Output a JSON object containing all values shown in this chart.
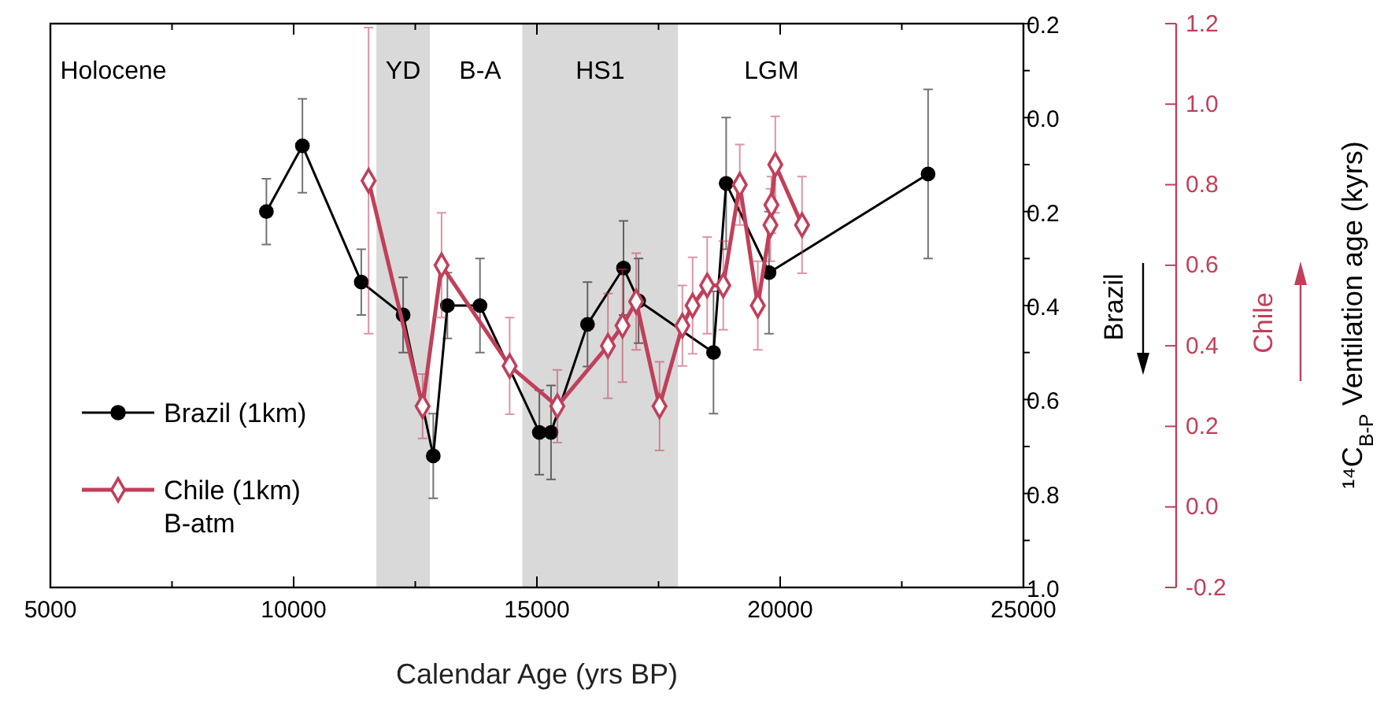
{
  "chart_data": {
    "type": "line",
    "xlabel": "Calendar Age (yrs BP)",
    "ylabel": "Brazil",
    "y2label": "Chile",
    "xlim": [
      5000,
      25000
    ],
    "xticks": [
      5000,
      {
        "value": 7500,
        "label": null
      },
      10000,
      {
        "value": 12500,
        "label": null
      },
      15000,
      {
        "value": 17500,
        "label": null
      },
      20000,
      {
        "value": 22500,
        "label": null
      },
      25000
    ],
    "ylim": [
      1.0,
      -0.2
    ],
    "yticks": [
      {
        "value": -0.2,
        "label": "0.2"
      },
      {
        "value": -0.1,
        "label": null
      },
      {
        "value": 0,
        "label": "0.0"
      },
      {
        "value": 0.1,
        "label": null
      },
      0.2,
      {
        "value": 0.3,
        "label": null
      },
      0.4,
      {
        "value": 0.5,
        "label": null
      },
      0.6,
      {
        "value": 0.7,
        "label": null
      },
      0.8,
      {
        "value": 0.9,
        "label": null
      },
      {
        "value": 1,
        "label": "1.0"
      }
    ],
    "y2lim": [
      -0.2,
      1.2
    ],
    "y2ticks": [
      -0.2,
      {
        "value": 0,
        "label": "0.0"
      },
      0.2,
      0.4,
      0.6,
      0.8,
      {
        "value": 1,
        "label": "1.0"
      },
      1.2
    ],
    "bands": [
      {
        "axis": "x",
        "from": 11700,
        "to": 12800,
        "label": "YD",
        "color": "#d9d9d9"
      },
      {
        "axis": "x",
        "from": 14700,
        "to": 17900,
        "label": "HS1",
        "color": "#d9d9d9"
      }
    ],
    "annotations": [
      "Holocene",
      "B-A",
      "LGM",
      "B-atm",
      "¹⁴C$_{B-P}$ Ventilation age (kyrs)"
    ],
    "legend": "bottom left",
    "grid": false,
    "series": [
      {
        "name": "Brazil (1km)",
        "color": "#000000",
        "marker": "circle",
        "x": [
          9440,
          10180,
          11390,
          12250,
          12870,
          13160,
          13830,
          15050,
          15290,
          16040,
          16780,
          17090,
          18630,
          18890,
          19770,
          23040
        ],
        "values": [
          0.2,
          0.06,
          0.35,
          0.42,
          0.72,
          0.4,
          0.4,
          0.67,
          0.67,
          0.44,
          0.32,
          0.39,
          0.5,
          0.14,
          0.33,
          0.12
        ],
        "errors": [
          0.07,
          0.1,
          0.07,
          0.08,
          0.09,
          0.07,
          0.1,
          0.09,
          0.1,
          0.09,
          0.1,
          0.09,
          0.13,
          0.14,
          0.13,
          0.18
        ]
      },
      {
        "name": "Chile (1km)",
        "color": "#c0405a",
        "marker": "diamond",
        "axis": "y2",
        "x": [
          11540,
          12650,
          13040,
          14440,
          15420,
          16460,
          16760,
          17040,
          17520,
          17990,
          18200,
          18500,
          18830,
          19170,
          19540,
          19800,
          19820,
          19900,
          20450
        ],
        "values": [
          0.81,
          0.25,
          0.6,
          0.35,
          0.25,
          0.4,
          0.45,
          0.51,
          0.25,
          0.45,
          0.5,
          0.55,
          0.55,
          0.8,
          0.5,
          0.7,
          0.75,
          0.85,
          0.7
        ],
        "errors": [
          0.38,
          0.08,
          0.13,
          0.12,
          0.09,
          0.13,
          0.14,
          0.12,
          0.11,
          0.1,
          0.12,
          0.12,
          0.11,
          0.1,
          0.11,
          0.09,
          0.07,
          0.12,
          0.12
        ]
      }
    ]
  }
}
